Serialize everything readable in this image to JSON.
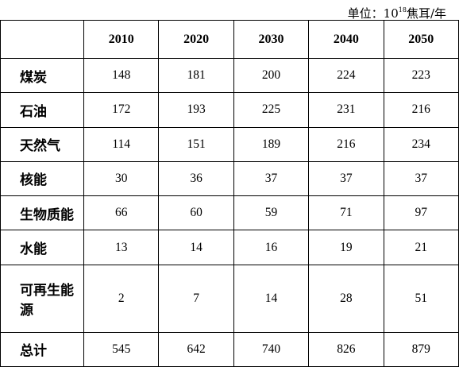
{
  "unit": {
    "prefix": "单位：10",
    "exponent": "18",
    "suffix": "焦耳/年"
  },
  "table": {
    "corner": "",
    "columns": [
      "2010",
      "2020",
      "2030",
      "2040",
      "2050"
    ],
    "rows": [
      {
        "label": "煤炭",
        "values": [
          "148",
          "181",
          "200",
          "224",
          "223"
        ]
      },
      {
        "label": "石油",
        "values": [
          "172",
          "193",
          "225",
          "231",
          "216"
        ]
      },
      {
        "label": "天然气",
        "values": [
          "114",
          "151",
          "189",
          "216",
          "234"
        ]
      },
      {
        "label": "核能",
        "values": [
          "30",
          "36",
          "37",
          "37",
          "37"
        ]
      },
      {
        "label": "生物质能",
        "values": [
          "66",
          "60",
          "59",
          "71",
          "97"
        ]
      },
      {
        "label": "水能",
        "values": [
          "13",
          "14",
          "16",
          "19",
          "21"
        ]
      },
      {
        "label": "可再生能源",
        "values": [
          "2",
          "7",
          "14",
          "28",
          "51"
        ]
      },
      {
        "label": "总计",
        "values": [
          "545",
          "642",
          "740",
          "826",
          "879"
        ]
      }
    ]
  }
}
